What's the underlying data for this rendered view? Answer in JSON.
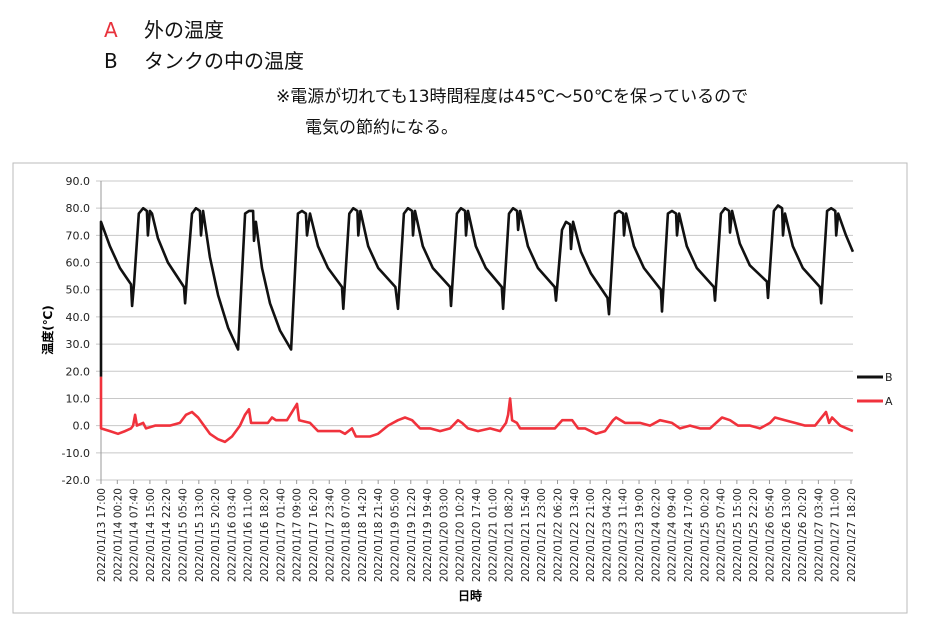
{
  "header": {
    "legend_notes": [
      {
        "key": "A",
        "text": "外の温度",
        "color": "#e8323c"
      },
      {
        "key": "B",
        "text": "タンクの中の温度",
        "color": "#111111"
      }
    ],
    "note_line1": "※電源が切れても13時間程度は45℃～50℃を保っているので",
    "note_line2": "電気の節約になる。"
  },
  "chart_data": {
    "type": "line",
    "title": "",
    "xlabel": "日時",
    "ylabel": "温度(℃)",
    "ylim": [
      -20,
      90
    ],
    "yticks": [
      "90.0",
      "80.0",
      "70.0",
      "60.0",
      "50.0",
      "40.0",
      "30.0",
      "20.0",
      "10.0",
      "0.0",
      "-10.0",
      "-20.0"
    ],
    "xlim": [
      "2022/01/13 17:00",
      "2022/01/27 19:10"
    ],
    "xticks": [
      "2022/01/13 17:00",
      "2022/01/14 00:20",
      "2022/01/14 07:40",
      "2022/01/14 15:00",
      "2022/01/14 22:20",
      "2022/01/15 05:40",
      "2022/01/15 13:00",
      "2022/01/15 20:20",
      "2022/01/16 03:40",
      "2022/01/16 11:00",
      "2022/01/16 18:20",
      "2022/01/17 01:40",
      "2022/01/17 09:00",
      "2022/01/17 16:20",
      "2022/01/17 23:40",
      "2022/01/18 07:00",
      "2022/01/18 14:20",
      "2022/01/18 21:40",
      "2022/01/19 05:00",
      "2022/01/19 12:20",
      "2022/01/19 19:40",
      "2022/01/20 03:00",
      "2022/01/20 10:20",
      "2022/01/20 17:40",
      "2022/01/21 01:00",
      "2022/01/21 08:20",
      "2022/01/21 15:40",
      "2022/01/21 23:00",
      "2022/01/22 06:20",
      "2022/01/22 13:40",
      "2022/01/22 21:00",
      "2022/01/23 04:20",
      "2022/01/23 11:40",
      "2022/01/23 19:00",
      "2022/01/24 02:20",
      "2022/01/24 09:40",
      "2022/01/24 17:00",
      "2022/01/25 00:20",
      "2022/01/25 07:40",
      "2022/01/25 15:00",
      "2022/01/25 22:20",
      "2022/01/26 05:40",
      "2022/01/26 13:00",
      "2022/01/26 20:20",
      "2022/01/27 03:40",
      "2022/01/27 11:00",
      "2022/01/27 18:20"
    ],
    "grid": true,
    "legend_placement": "right",
    "series": [
      {
        "name": "B",
        "color": "#111111",
        "points": [
          [
            "2022/01/13 17:00",
            18
          ],
          [
            "2022/01/13 17:00",
            75
          ],
          [
            "2022/01/13 21:00",
            66
          ],
          [
            "2022/01/14 01:30",
            58
          ],
          [
            "2022/01/14 06:30",
            52
          ],
          [
            "2022/01/14 07:00",
            44
          ],
          [
            "2022/01/14 07:50",
            52
          ],
          [
            "2022/01/14 10:00",
            78
          ],
          [
            "2022/01/14 12:00",
            80
          ],
          [
            "2022/01/14 13:40",
            79
          ],
          [
            "2022/01/14 14:05",
            70
          ],
          [
            "2022/01/14 15:00",
            79
          ],
          [
            "2022/01/14 15:55",
            78
          ],
          [
            "2022/01/14 18:35",
            69
          ],
          [
            "2022/01/14 23:05",
            60
          ],
          [
            "2022/01/15 06:20",
            51
          ],
          [
            "2022/01/15 06:50",
            45
          ],
          [
            "2022/01/15 07:40",
            55
          ],
          [
            "2022/01/15 09:55",
            78
          ],
          [
            "2022/01/15 11:40",
            80
          ],
          [
            "2022/01/15 13:30",
            79
          ],
          [
            "2022/01/15 14:00",
            70
          ],
          [
            "2022/01/15 14:55",
            79
          ],
          [
            "2022/01/15 18:00",
            62
          ],
          [
            "2022/01/15 21:40",
            48
          ],
          [
            "2022/01/16 02:10",
            36
          ],
          [
            "2022/01/16 06:40",
            28
          ],
          [
            "2022/01/16 09:50",
            78
          ],
          [
            "2022/01/16 11:35",
            79
          ],
          [
            "2022/01/16 13:25",
            79
          ],
          [
            "2022/01/16 13:50",
            68
          ],
          [
            "2022/01/16 14:40",
            75
          ],
          [
            "2022/01/16 17:25",
            58
          ],
          [
            "2022/01/16 21:00",
            45
          ],
          [
            "2022/01/17 01:30",
            35
          ],
          [
            "2022/01/17 06:30",
            28
          ],
          [
            "2022/01/17 09:35",
            78
          ],
          [
            "2022/01/17 11:25",
            79
          ],
          [
            "2022/01/17 13:10",
            78
          ],
          [
            "2022/01/17 13:40",
            70
          ],
          [
            "2022/01/17 15:00",
            78
          ],
          [
            "2022/01/17 18:35",
            66
          ],
          [
            "2022/01/17 23:05",
            58
          ],
          [
            "2022/01/18 05:25",
            51
          ],
          [
            "2022/01/18 06:00",
            43
          ],
          [
            "2022/01/18 08:40",
            78
          ],
          [
            "2022/01/18 10:30",
            80
          ],
          [
            "2022/01/18 12:20",
            79
          ],
          [
            "2022/01/18 12:45",
            70
          ],
          [
            "2022/01/18 13:40",
            79
          ],
          [
            "2022/01/18 17:10",
            66
          ],
          [
            "2022/01/18 21:40",
            58
          ],
          [
            "2022/01/19 05:25",
            51
          ],
          [
            "2022/01/19 06:35",
            43
          ],
          [
            "2022/01/19 09:15",
            78
          ],
          [
            "2022/01/19 11:05",
            80
          ],
          [
            "2022/01/19 12:55",
            79
          ],
          [
            "2022/01/19 13:20",
            70
          ],
          [
            "2022/01/19 14:15",
            79
          ],
          [
            "2022/01/19 17:45",
            66
          ],
          [
            "2022/01/19 22:15",
            58
          ],
          [
            "2022/01/20 06:00",
            51
          ],
          [
            "2022/01/20 06:25",
            44
          ],
          [
            "2022/01/20 09:05",
            78
          ],
          [
            "2022/01/20 10:55",
            80
          ],
          [
            "2022/01/20 12:45",
            79
          ],
          [
            "2022/01/20 13:10",
            70
          ],
          [
            "2022/01/20 14:05",
            79
          ],
          [
            "2022/01/20 17:35",
            66
          ],
          [
            "2022/01/20 22:05",
            58
          ],
          [
            "2022/01/21 05:15",
            51
          ],
          [
            "2022/01/21 05:50",
            43
          ],
          [
            "2022/01/21 08:30",
            78
          ],
          [
            "2022/01/21 10:20",
            80
          ],
          [
            "2022/01/21 12:10",
            79
          ],
          [
            "2022/01/21 12:35",
            72
          ],
          [
            "2022/01/21 13:30",
            79
          ],
          [
            "2022/01/21 17:00",
            66
          ],
          [
            "2022/01/21 21:30",
            58
          ],
          [
            "2022/01/22 05:05",
            51
          ],
          [
            "2022/01/22 05:40",
            46
          ],
          [
            "2022/01/22 08:20",
            72
          ],
          [
            "2022/01/22 10:10",
            75
          ],
          [
            "2022/01/22 12:00",
            74
          ],
          [
            "2022/01/22 12:25",
            65
          ],
          [
            "2022/01/22 13:20",
            75
          ],
          [
            "2022/01/22 16:50",
            64
          ],
          [
            "2022/01/22 21:20",
            56
          ],
          [
            "2022/01/23 04:50",
            47
          ],
          [
            "2022/01/23 05:30",
            41
          ],
          [
            "2022/01/23 08:10",
            78
          ],
          [
            "2022/01/23 10:00",
            79
          ],
          [
            "2022/01/23 11:50",
            78
          ],
          [
            "2022/01/23 12:15",
            70
          ],
          [
            "2022/01/23 13:10",
            78
          ],
          [
            "2022/01/23 16:40",
            66
          ],
          [
            "2022/01/23 21:10",
            58
          ],
          [
            "2022/01/24 04:50",
            50
          ],
          [
            "2022/01/24 05:20",
            42
          ],
          [
            "2022/01/24 08:00",
            78
          ],
          [
            "2022/01/24 09:50",
            79
          ],
          [
            "2022/01/24 11:40",
            78
          ],
          [
            "2022/01/24 12:05",
            70
          ],
          [
            "2022/01/24 13:00",
            78
          ],
          [
            "2022/01/24 16:30",
            66
          ],
          [
            "2022/01/24 21:00",
            58
          ],
          [
            "2022/01/25 04:40",
            51
          ],
          [
            "2022/01/25 05:10",
            46
          ],
          [
            "2022/01/25 07:50",
            78
          ],
          [
            "2022/01/25 09:40",
            80
          ],
          [
            "2022/01/25 11:30",
            79
          ],
          [
            "2022/01/25 11:55",
            71
          ],
          [
            "2022/01/25 12:50",
            79
          ],
          [
            "2022/01/25 16:20",
            67
          ],
          [
            "2022/01/25 20:50",
            59
          ],
          [
            "2022/01/26 04:30",
            53
          ],
          [
            "2022/01/26 05:00",
            47
          ],
          [
            "2022/01/26 07:40",
            79
          ],
          [
            "2022/01/26 09:30",
            81
          ],
          [
            "2022/01/26 11:20",
            80
          ],
          [
            "2022/01/26 11:45",
            70
          ],
          [
            "2022/01/26 12:40",
            78
          ],
          [
            "2022/01/26 16:10",
            66
          ],
          [
            "2022/01/26 20:40",
            58
          ],
          [
            "2022/01/27 04:20",
            51
          ],
          [
            "2022/01/27 04:55",
            45
          ],
          [
            "2022/01/27 07:35",
            79
          ],
          [
            "2022/01/27 09:25",
            80
          ],
          [
            "2022/01/27 11:15",
            79
          ],
          [
            "2022/01/27 11:40",
            70
          ],
          [
            "2022/01/27 12:35",
            78
          ],
          [
            "2022/01/27 16:05",
            70
          ],
          [
            "2022/01/27 19:10",
            64
          ]
        ]
      },
      {
        "name": "A",
        "color": "#f0323c",
        "points": [
          [
            "2022/01/13 17:00",
            18
          ],
          [
            "2022/01/13 17:00",
            -1
          ],
          [
            "2022/01/13 21:00",
            -2
          ],
          [
            "2022/01/14 00:40",
            -3
          ],
          [
            "2022/01/14 03:50",
            -2
          ],
          [
            "2022/01/14 06:30",
            -1
          ],
          [
            "2022/01/14 07:25",
            0
          ],
          [
            "2022/01/14 08:20",
            4
          ],
          [
            "2022/01/14 09:10",
            0
          ],
          [
            "2022/01/14 11:55",
            1
          ],
          [
            "2022/01/14 13:15",
            -1
          ],
          [
            "2022/01/14 17:20",
            0
          ],
          [
            "2022/01/15 00:00",
            0
          ],
          [
            "2022/01/15 04:30",
            1
          ],
          [
            "2022/01/15 07:15",
            4
          ],
          [
            "2022/01/15 09:55",
            5
          ],
          [
            "2022/01/15 12:40",
            3
          ],
          [
            "2022/01/15 15:20",
            0
          ],
          [
            "2022/01/15 18:00",
            -3
          ],
          [
            "2022/01/15 21:35",
            -5
          ],
          [
            "2022/01/16 00:45",
            -6
          ],
          [
            "2022/01/16 03:55",
            -4
          ],
          [
            "2022/01/16 07:30",
            0
          ],
          [
            "2022/01/16 09:45",
            4
          ],
          [
            "2022/01/16 11:35",
            6
          ],
          [
            "2022/01/16 12:30",
            1
          ],
          [
            "2022/01/16 16:30",
            1
          ],
          [
            "2022/01/16 20:05",
            1
          ],
          [
            "2022/01/16 21:55",
            3
          ],
          [
            "2022/01/16 23:40",
            2
          ],
          [
            "2022/01/17 04:40",
            2
          ],
          [
            "2022/01/17 09:10",
            8
          ],
          [
            "2022/01/17 10:05",
            2
          ],
          [
            "2022/01/17 15:00",
            1
          ],
          [
            "2022/01/17 18:35",
            -2
          ],
          [
            "2022/01/18 00:00",
            -2
          ],
          [
            "2022/01/18 04:30",
            -2
          ],
          [
            "2022/01/18 06:45",
            -3
          ],
          [
            "2022/01/18 09:55",
            -1
          ],
          [
            "2022/01/18 11:40",
            -4
          ],
          [
            "2022/01/18 18:00",
            -4
          ],
          [
            "2022/01/18 21:35",
            -3
          ],
          [
            "2022/01/19 02:05",
            0
          ],
          [
            "2022/01/19 06:35",
            2
          ],
          [
            "2022/01/19 09:45",
            3
          ],
          [
            "2022/01/19 12:55",
            2
          ],
          [
            "2022/01/19 16:30",
            -1
          ],
          [
            "2022/01/19 21:00",
            -1
          ],
          [
            "2022/01/20 01:30",
            -2
          ],
          [
            "2022/01/20 06:00",
            -1
          ],
          [
            "2022/01/20 09:35",
            2
          ],
          [
            "2022/01/20 11:25",
            1
          ],
          [
            "2022/01/20 14:05",
            -1
          ],
          [
            "2022/01/20 18:35",
            -2
          ],
          [
            "2022/01/21 00:00",
            -1
          ],
          [
            "2022/01/21 04:30",
            -2
          ],
          [
            "2022/01/21 07:10",
            1
          ],
          [
            "2022/01/21 08:05",
            4
          ],
          [
            "2022/01/21 09:00",
            10
          ],
          [
            "2022/01/21 09:55",
            2
          ],
          [
            "2022/01/21 12:05",
            1
          ],
          [
            "2022/01/21 13:30",
            -1
          ],
          [
            "2022/01/21 22:30",
            -1
          ],
          [
            "2022/01/22 05:10",
            -1
          ],
          [
            "2022/01/22 08:25",
            2
          ],
          [
            "2022/01/22 12:55",
            2
          ],
          [
            "2022/01/22 15:35",
            -1
          ],
          [
            "2022/01/22 18:45",
            -1
          ],
          [
            "2022/01/22 23:40",
            -3
          ],
          [
            "2022/01/23 03:40",
            -2
          ],
          [
            "2022/01/23 07:20",
            2
          ],
          [
            "2022/01/23 08:40",
            3
          ],
          [
            "2022/01/23 12:40",
            1
          ],
          [
            "2022/01/23 19:25",
            1
          ],
          [
            "2022/01/23 23:55",
            0
          ],
          [
            "2022/01/24 04:25",
            2
          ],
          [
            "2022/01/24 09:50",
            1
          ],
          [
            "2022/01/24 13:25",
            -1
          ],
          [
            "2022/01/24 17:55",
            0
          ],
          [
            "2022/01/24 22:25",
            -1
          ],
          [
            "2022/01/25 02:55",
            -1
          ],
          [
            "2022/01/25 08:20",
            3
          ],
          [
            "2022/01/25 11:55",
            2
          ],
          [
            "2022/01/25 15:30",
            0
          ],
          [
            "2022/01/25 20:55",
            0
          ],
          [
            "2022/01/26 01:25",
            -1
          ],
          [
            "2022/01/26 05:55",
            1
          ],
          [
            "2022/01/26 08:10",
            3
          ],
          [
            "2022/01/26 12:40",
            2
          ],
          [
            "2022/01/26 17:10",
            1
          ],
          [
            "2022/01/26 21:40",
            0
          ],
          [
            "2022/01/27 02:10",
            0
          ],
          [
            "2022/01/27 07:05",
            5
          ],
          [
            "2022/01/27 08:30",
            1
          ],
          [
            "2022/01/27 09:50",
            3
          ],
          [
            "2022/01/27 13:25",
            0
          ],
          [
            "2022/01/27 19:10",
            -2
          ]
        ]
      }
    ],
    "legend": [
      {
        "name": "B",
        "color": "#111111"
      },
      {
        "name": "A",
        "color": "#f0323c"
      }
    ]
  }
}
